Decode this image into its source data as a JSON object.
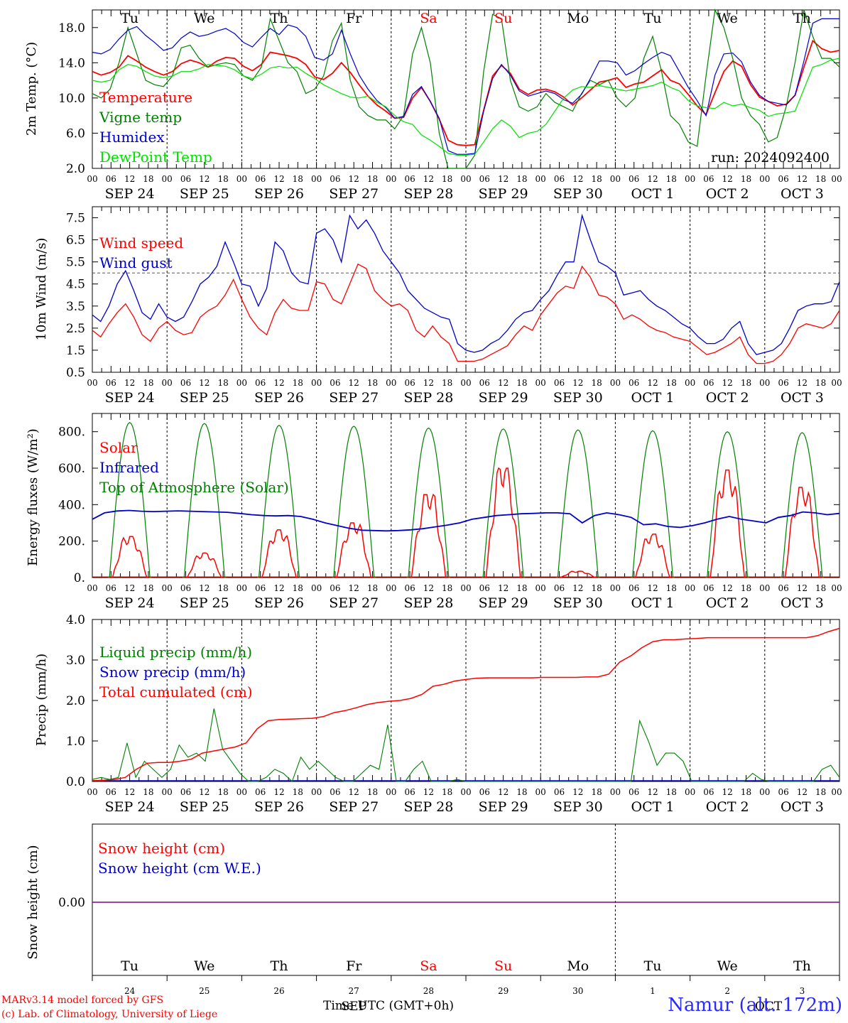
{
  "chart_data": [
    {
      "type": "line",
      "ylabel": "2m Temp. (°C)",
      "ylim": [
        2,
        20
      ],
      "yticks": [
        "2.0",
        "6.0",
        "10.0",
        "14.0",
        "18.0"
      ],
      "run_label": "run: 2024092400",
      "weekdays": [
        "Tu",
        "We",
        "Th",
        "Fr",
        "Sa",
        "Su",
        "Mo",
        "Tu",
        "We",
        "Th"
      ],
      "series": [
        {
          "name": "Temperature",
          "color": "#ff0000",
          "values": [
            13.0,
            12.6,
            12.9,
            13.5,
            14.8,
            14.2,
            13.5,
            13.0,
            12.6,
            13.0,
            13.9,
            14.3,
            14.0,
            13.5,
            14.2,
            14.6,
            14.5,
            13.6,
            13.1,
            13.8,
            15.2,
            15.0,
            14.8,
            14.5,
            13.8,
            12.4,
            12.1,
            12.8,
            14.0,
            12.9,
            11.5,
            10.2,
            9.2,
            8.5,
            7.7,
            7.8,
            10.0,
            11.2,
            9.6,
            7.6,
            5.2,
            4.7,
            4.6,
            4.7,
            8.6,
            12.5,
            13.7,
            12.8,
            11.0,
            10.4,
            10.9,
            11.0,
            10.7,
            10.1,
            9.2,
            10.0,
            10.9,
            11.8,
            12.0,
            12.3,
            11.2,
            11.6,
            11.8,
            12.5,
            13.2,
            12.0,
            11.6,
            10.4,
            9.1,
            8.1,
            10.6,
            13.0,
            14.2,
            13.6,
            11.5,
            10.1,
            9.6,
            9.1,
            9.3,
            10.3,
            13.5,
            16.5,
            15.6,
            15.2,
            15.4
          ]
        },
        {
          "name": "Vigne temp",
          "color": "#008000",
          "values": [
            10.5,
            10.0,
            11.0,
            14.0,
            18.0,
            15.0,
            12.0,
            11.5,
            11.3,
            12.5,
            15.7,
            16.0,
            14.5,
            13.5,
            13.8,
            14.0,
            13.8,
            12.5,
            12.0,
            13.5,
            19.0,
            16.5,
            14.0,
            13.0,
            10.5,
            11.0,
            12.5,
            16.5,
            18.5,
            12.0,
            9.0,
            8.0,
            7.5,
            7.5,
            6.5,
            8.0,
            15.0,
            18.0,
            14.0,
            6.0,
            2.0,
            2.0,
            2.0,
            3.5,
            13.0,
            19.5,
            19.0,
            12.0,
            9.0,
            8.5,
            9.0,
            10.5,
            9.5,
            9.0,
            8.5,
            10.5,
            12.0,
            11.5,
            12.0,
            10.0,
            9.0,
            10.0,
            14.5,
            17.0,
            13.0,
            8.0,
            7.0,
            5.0,
            4.5,
            12.5,
            20.0,
            18.0,
            14.5,
            10.0,
            8.0,
            7.0,
            5.0,
            5.5,
            9.0,
            14.0,
            20.0,
            17.0,
            14.5,
            14.5,
            13.5
          ]
        },
        {
          "name": "Humidex",
          "color": "#0000cc",
          "values": [
            15.2,
            15.0,
            15.5,
            16.7,
            17.7,
            18.1,
            17.1,
            16.3,
            15.4,
            15.7,
            16.8,
            17.5,
            17.0,
            17.2,
            17.6,
            17.9,
            17.3,
            16.3,
            15.8,
            16.9,
            17.9,
            17.2,
            18.3,
            18.0,
            17.0,
            14.6,
            14.3,
            15.0,
            17.7,
            15.0,
            12.6,
            11.0,
            9.7,
            8.9,
            7.7,
            7.9,
            10.4,
            11.3,
            9.6,
            7.7,
            4.0,
            3.6,
            3.6,
            3.7,
            8.5,
            12.2,
            13.8,
            12.6,
            10.8,
            10.2,
            10.5,
            10.8,
            10.5,
            9.8,
            9.4,
            10.4,
            12.2,
            14.2,
            14.2,
            14.0,
            12.6,
            13.1,
            13.9,
            14.6,
            15.2,
            14.8,
            13.0,
            11.2,
            9.7,
            8.0,
            12.6,
            15.0,
            15.1,
            14.1,
            11.8,
            10.3,
            9.6,
            9.4,
            9.2,
            10.3,
            14.2,
            18.5,
            19.0,
            19.0,
            19.0
          ]
        },
        {
          "name": "DewPoint Temp",
          "color": "#00e000",
          "values": [
            12.0,
            11.8,
            12.0,
            13.2,
            13.8,
            13.6,
            13.0,
            12.5,
            12.3,
            12.5,
            13.0,
            13.0,
            13.3,
            13.8,
            13.7,
            13.6,
            13.2,
            12.5,
            12.2,
            12.7,
            13.4,
            13.6,
            13.4,
            13.5,
            12.8,
            12.2,
            11.5,
            11.0,
            10.5,
            10.1,
            10.0,
            10.2,
            9.5,
            9.0,
            8.0,
            7.3,
            7.0,
            5.8,
            5.2,
            4.5,
            3.7,
            3.5,
            3.5,
            3.6,
            5.0,
            6.5,
            7.5,
            6.8,
            5.5,
            6.0,
            6.2,
            7.0,
            8.5,
            10.0,
            10.9,
            11.3,
            11.2,
            11.4,
            11.2,
            11.0,
            10.8,
            11.0,
            11.2,
            11.4,
            11.8,
            11.2,
            10.8,
            9.7,
            9.1,
            8.9,
            8.8,
            9.5,
            9.1,
            9.3,
            8.9,
            8.6,
            7.9,
            8.2,
            8.3,
            8.5,
            11.0,
            13.5,
            13.8,
            14.3,
            14.5
          ]
        }
      ]
    },
    {
      "type": "line",
      "ylabel": "10m Wind (m/s)",
      "ylim": [
        0.5,
        8
      ],
      "yticks": [
        "0.5",
        "1.5",
        "2.5",
        "3.5",
        "4.5",
        "5.5",
        "6.5",
        "7.5"
      ],
      "reference_line": 5,
      "series": [
        {
          "name": "Wind speed",
          "color": "#ff0000",
          "values": [
            2.4,
            2.1,
            2.7,
            3.2,
            3.6,
            3.0,
            2.2,
            1.9,
            2.5,
            2.8,
            2.4,
            2.2,
            2.3,
            3.0,
            3.3,
            3.5,
            4.0,
            4.7,
            3.8,
            3.0,
            2.5,
            2.2,
            3.2,
            3.8,
            3.4,
            3.3,
            3.3,
            4.6,
            4.5,
            3.8,
            3.6,
            4.5,
            5.4,
            5.2,
            4.2,
            3.8,
            3.5,
            3.6,
            3.3,
            2.4,
            2.1,
            2.6,
            2.1,
            1.8,
            1.0,
            1.0,
            1.0,
            1.1,
            1.3,
            1.5,
            1.7,
            2.2,
            2.6,
            2.4,
            3.1,
            3.6,
            4.1,
            4.4,
            4.3,
            5.3,
            4.8,
            4.0,
            3.9,
            3.6,
            2.9,
            3.1,
            2.9,
            2.6,
            2.4,
            2.3,
            2.1,
            2.0,
            1.9,
            1.6,
            1.3,
            1.4,
            1.6,
            1.8,
            2.1,
            1.3,
            0.9,
            0.9,
            1.0,
            1.3,
            1.8,
            2.5,
            2.7,
            2.6,
            2.5,
            2.7,
            3.3
          ]
        },
        {
          "name": "Wind gust",
          "color": "#0000cc",
          "values": [
            3.1,
            2.8,
            3.5,
            4.5,
            5.1,
            4.2,
            3.2,
            2.9,
            3.6,
            3.0,
            2.8,
            3.0,
            3.7,
            4.5,
            4.8,
            5.3,
            6.4,
            5.5,
            4.5,
            4.4,
            3.5,
            4.3,
            6.4,
            6.0,
            5.0,
            4.6,
            4.5,
            6.8,
            7.0,
            6.5,
            5.5,
            7.6,
            7.0,
            7.4,
            6.8,
            6.0,
            5.5,
            5.0,
            4.2,
            3.8,
            3.4,
            3.2,
            3.0,
            2.9,
            1.8,
            1.5,
            1.4,
            1.5,
            1.8,
            2.0,
            2.4,
            2.9,
            3.2,
            3.3,
            3.8,
            4.2,
            4.9,
            5.5,
            5.5,
            7.6,
            6.5,
            5.5,
            5.3,
            5.0,
            4.0,
            4.1,
            4.2,
            3.8,
            3.5,
            3.3,
            3.0,
            2.7,
            2.5,
            2.1,
            1.8,
            1.8,
            2.0,
            2.5,
            2.8,
            1.8,
            1.3,
            1.4,
            1.5,
            1.8,
            2.5,
            3.3,
            3.5,
            3.6,
            3.6,
            3.7,
            4.6
          ]
        }
      ]
    },
    {
      "type": "line",
      "ylabel": "Energy fluxes (W/m²)",
      "ylim": [
        0,
        900
      ],
      "yticks": [
        "0.",
        "200.",
        "400.",
        "600.",
        "800."
      ],
      "solar_peaks": [
        225,
        135,
        262,
        300,
        455,
        600,
        35,
        238,
        590,
        495
      ],
      "toa_peaks": [
        850,
        845,
        835,
        830,
        820,
        815,
        810,
        805,
        800,
        795
      ],
      "infrared": [
        320,
        355,
        365,
        368,
        364,
        362,
        364,
        366,
        364,
        362,
        360,
        358,
        352,
        345,
        340,
        338,
        340,
        335,
        320,
        300,
        285,
        270,
        260,
        258,
        256,
        258,
        262,
        268,
        278,
        288,
        300,
        320,
        330,
        340,
        345,
        350,
        352,
        355,
        355,
        350,
        300,
        340,
        355,
        345,
        330,
        290,
        295,
        280,
        275,
        285,
        300,
        320,
        335,
        320,
        310,
        300,
        330,
        340,
        360,
        355,
        345,
        352
      ]
    },
    {
      "type": "line",
      "ylabel": "Precip (mm/h)",
      "ylim": [
        0,
        4
      ],
      "yticks": [
        "0.0",
        "1.0",
        "2.0",
        "3.0",
        "4.0"
      ],
      "series": [
        {
          "name": "Liquid precip (mm/h)",
          "color": "#008000",
          "values": [
            0.05,
            0.1,
            0.05,
            0.1,
            0.95,
            0.1,
            0.5,
            0.3,
            0.1,
            0.3,
            0.9,
            0.6,
            0.7,
            0.5,
            1.8,
            0.8,
            0.5,
            0.2,
            0.0,
            0.0,
            0.1,
            0.3,
            0.2,
            0.0,
            0.6,
            0.3,
            0.5,
            0.3,
            0.1,
            0.0,
            0.0,
            0.2,
            0.4,
            0.3,
            1.4,
            0.0,
            0.0,
            0.3,
            0.5,
            0.0,
            0.0,
            0.0,
            0.05,
            0.0,
            0.0,
            0.0,
            0.0,
            0.0,
            0.0,
            0.0,
            0.0,
            0.0,
            0.0,
            0.0,
            0.0,
            0.0,
            0.0,
            0.0,
            0.0,
            0.0,
            0.0,
            0.0,
            0.0,
            1.5,
            1.0,
            0.4,
            0.7,
            0.7,
            0.5,
            0.0,
            0.0,
            0.0,
            0.0,
            0.0,
            0.0,
            0.0,
            0.2,
            0.05,
            0.0,
            0.0,
            0.0,
            0.0,
            0.0,
            0.0,
            0.3,
            0.4,
            0.1
          ]
        },
        {
          "name": "Snow precip (mm/h)",
          "color": "#0000cc",
          "values": []
        },
        {
          "name": "Total cumulated (cm)",
          "color": "#ff0000",
          "values": [
            0.02,
            0.03,
            0.05,
            0.1,
            0.3,
            0.45,
            0.47,
            0.47,
            0.5,
            0.55,
            0.7,
            0.75,
            0.8,
            0.85,
            0.95,
            1.3,
            1.5,
            1.53,
            1.54,
            1.55,
            1.56,
            1.6,
            1.7,
            1.75,
            1.82,
            1.9,
            1.95,
            1.98,
            2.0,
            2.05,
            2.15,
            2.35,
            2.4,
            2.48,
            2.52,
            2.55,
            2.56,
            2.56,
            2.56,
            2.56,
            2.56,
            2.57,
            2.57,
            2.57,
            2.57,
            2.58,
            2.58,
            2.65,
            2.95,
            3.1,
            3.3,
            3.45,
            3.5,
            3.5,
            3.52,
            3.53,
            3.55,
            3.55,
            3.55,
            3.55,
            3.55,
            3.55,
            3.55,
            3.55,
            3.55,
            3.55,
            3.6,
            3.7,
            3.78
          ]
        }
      ]
    },
    {
      "type": "line",
      "ylabel": "Snow height (cm)",
      "yticks": [
        "0.00"
      ],
      "series": [
        {
          "name": "Snow height (cm)",
          "color": "#ff0000",
          "values": [
            0,
            0
          ]
        },
        {
          "name": "Snow height (cm W.E.)",
          "color": "#0000cc",
          "values": [
            0,
            0
          ]
        }
      ],
      "weekdays": [
        "Tu",
        "We",
        "Th",
        "Fr",
        "Sa",
        "Su",
        "Mo",
        "Tu",
        "We",
        "Th"
      ],
      "day_numbers": [
        "24",
        "25",
        "26",
        "27",
        "28",
        "29",
        "30",
        "1",
        "2",
        "3"
      ],
      "month_labels": [
        "SEP",
        "OCT"
      ]
    }
  ],
  "axis": {
    "hour_ticks": [
      "00",
      "06",
      "12",
      "18"
    ],
    "end_tick": "00",
    "dates": [
      "SEP 24",
      "SEP 25",
      "SEP 26",
      "SEP 27",
      "SEP 28",
      "SEP 29",
      "SEP 30",
      "OCT  1",
      "OCT  2",
      "OCT  3"
    ],
    "weekend_color": "#ff0000",
    "weekend_days": [
      "Sa",
      "Su"
    ]
  },
  "footer": {
    "model": "MARv3.14 model forced by GFS",
    "copyright": "(c) Lab. of Climatology, University of Liege",
    "time_label": "Time UTC (GMT+0h)",
    "station": "Namur (alt. 172m)"
  }
}
